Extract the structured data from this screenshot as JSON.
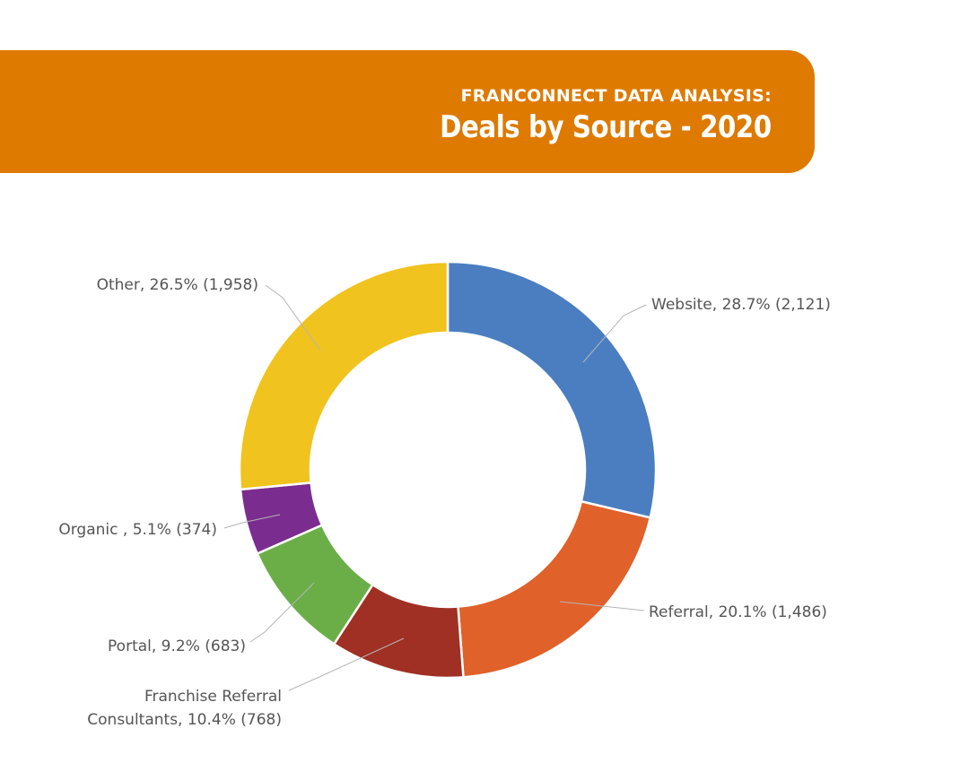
{
  "header": {
    "subtitle": "FRANCONNECT DATA ANALYSIS:",
    "title": "Deals by Source - 2020",
    "banner_color": "#DE7A00"
  },
  "chart_data": {
    "type": "pie",
    "variant": "donut",
    "title": "Deals by Source - 2020",
    "slices": [
      {
        "name": "Website",
        "percent": 28.7,
        "value": 2121,
        "label": [
          "Website, 28.7% (2,121)"
        ],
        "color": "#4A7EC0"
      },
      {
        "name": "Referral",
        "percent": 20.1,
        "value": 1486,
        "label": [
          "Referral, 20.1% (1,486)"
        ],
        "color": "#E0612A"
      },
      {
        "name": "Franchise Referral Consultants",
        "percent": 10.4,
        "value": 768,
        "label": [
          "Franchise Referral",
          "Consultants, 10.4% (768)"
        ],
        "color": "#A03024"
      },
      {
        "name": "Portal",
        "percent": 9.2,
        "value": 683,
        "label": [
          "Portal, 9.2% (683)"
        ],
        "color": "#6BAE48"
      },
      {
        "name": "Organic",
        "percent": 5.1,
        "value": 374,
        "label": [
          "Organic , 5.1% (374)"
        ],
        "color": "#7A2D8E"
      },
      {
        "name": "Other",
        "percent": 26.5,
        "value": 1958,
        "label": [
          "Other, 26.5% (1,958)"
        ],
        "color": "#F0C31E"
      }
    ]
  }
}
